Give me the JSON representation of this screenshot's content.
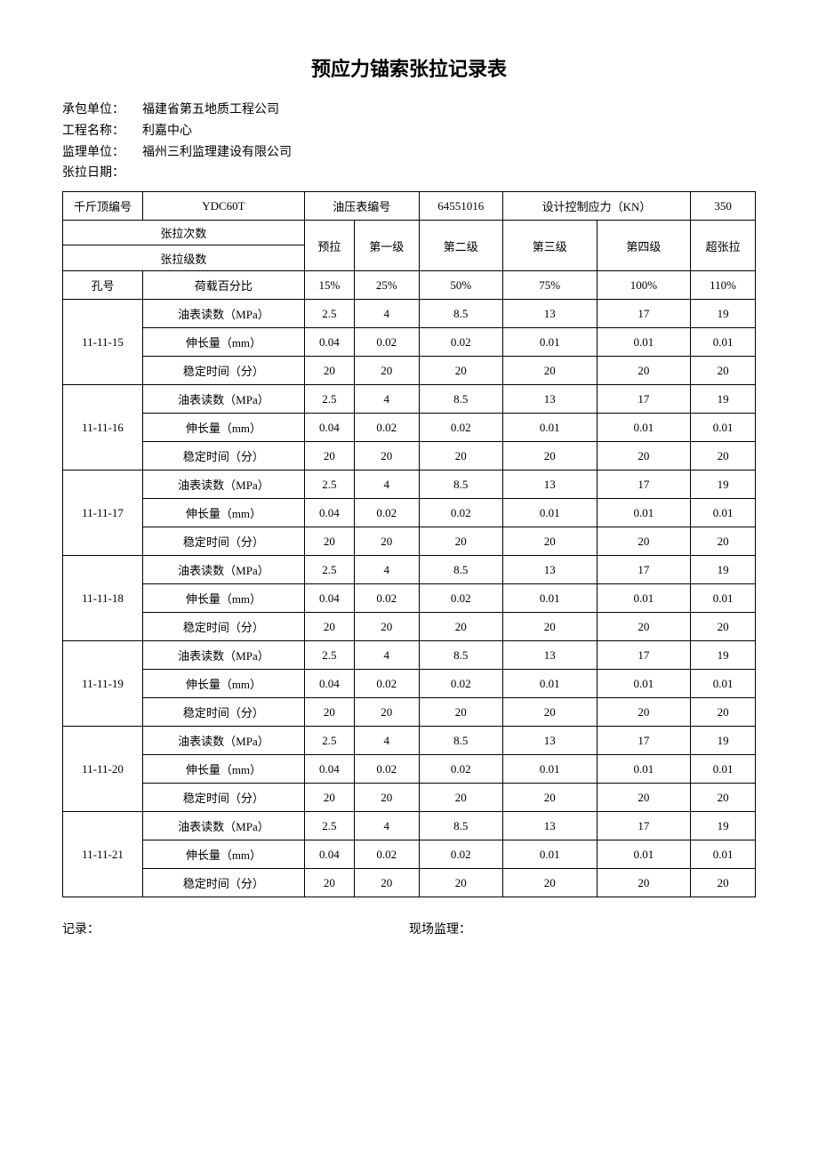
{
  "title": "预应力锚索张拉记录表",
  "meta": {
    "contractor_label": "承包单位：",
    "contractor_value": "福建省第五地质工程公司",
    "project_label": "工程名称：",
    "project_value": "利嘉中心",
    "supervisor_label": "监理单位：",
    "supervisor_value": "福州三利监理建设有限公司",
    "date_label": "张拉日期：",
    "date_value": ""
  },
  "header_row": {
    "jack_no_label": "千斤顶编号",
    "jack_no_value": "YDC60T",
    "gauge_no_label": "油压表编号",
    "gauge_no_value": "64551016",
    "design_force_label": "设计控制应力（KN）",
    "design_force_value": "350"
  },
  "stage_header": {
    "count_label": "张拉次数",
    "level_label": "张拉级数",
    "preload": "预拉",
    "level1": "第一级",
    "level2": "第二级",
    "level3": "第三级",
    "level4": "第四级",
    "over": "超张拉"
  },
  "pct_header": {
    "hole_label": "孔号",
    "load_pct_label": "荷载百分比",
    "p15": "15%",
    "p25": "25%",
    "p50": "50%",
    "p75": "75%",
    "p100": "100%",
    "p110": "110%"
  },
  "param_labels": {
    "gauge": "油表读数（MPa）",
    "elong": "伸长量（mm）",
    "time": "稳定时间（分）"
  },
  "row_values": {
    "gauge": [
      "2.5",
      "4",
      "8.5",
      "13",
      "17",
      "19"
    ],
    "elong": [
      "0.04",
      "0.02",
      "0.02",
      "0.01",
      "0.01",
      "0.01"
    ],
    "time": [
      "20",
      "20",
      "20",
      "20",
      "20",
      "20"
    ]
  },
  "holes": [
    "11-11-15",
    "11-11-16",
    "11-11-17",
    "11-11-18",
    "11-11-19",
    "11-11-20",
    "11-11-21"
  ],
  "footer": {
    "record_label": "记录：",
    "site_supervisor_label": "现场监理："
  },
  "styling": {
    "title_fontsize": 22,
    "body_fontsize": 14,
    "table_fontsize": 13,
    "border_color": "#000000",
    "background_color": "#ffffff",
    "text_color": "#000000",
    "font_family": "SimSun"
  }
}
